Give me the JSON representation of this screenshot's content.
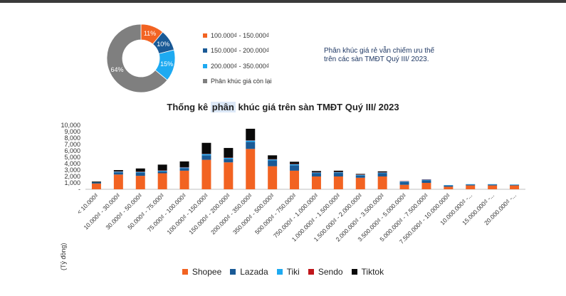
{
  "colors": {
    "shopee": "#f26322",
    "lazada": "#1a5a96",
    "tiki": "#1eaaf1",
    "sendo": "#c0161b",
    "tiktok": "#0a0a0a",
    "other": "#7f7f7f",
    "note_text": "#1f3864"
  },
  "note": {
    "line1": "Phân khúc giá rẻ vẫn chiếm ưu thế",
    "line2": "trên các sàn TMĐT Quý III/ 2023."
  },
  "chart_data": [
    {
      "type": "pie",
      "donut": true,
      "slices": [
        {
          "name": "100.000₫ - 150.000₫",
          "value": 11,
          "label": "11%",
          "color": "#f26322"
        },
        {
          "name": "150.000₫ - 200.000₫",
          "value": 10,
          "label": "10%",
          "color": "#1a5a96"
        },
        {
          "name": "200.000₫ - 350.000₫",
          "value": 15,
          "label": "15%",
          "color": "#1eaaf1"
        },
        {
          "name": "Phân khúc giá còn lại",
          "value": 64,
          "label": "64%",
          "color": "#7f7f7f"
        }
      ],
      "legend_position": "right"
    },
    {
      "type": "bar",
      "stacked": true,
      "title_parts": [
        "Thống kê ",
        "phân",
        " khúc giá trên sàn TMĐT Quý III/ 2023"
      ],
      "ylabel": "(Tỷ đồng)",
      "ylim": [
        0,
        10000
      ],
      "yticks": [
        "10,000",
        "9,000",
        "8,000",
        "7,000",
        "6,000",
        "5,000",
        "4,000",
        "3,000",
        "2,000",
        "1,000",
        "-"
      ],
      "categories": [
        "< 10.000₫",
        "10.000₫ - 30.000₫",
        "30.000₫ - 50.000₫",
        "50.000₫ - 75.000₫",
        "75.000₫ - 100.000₫",
        "100.000₫ - 150.000₫",
        "150.000₫ - 200.000₫",
        "200.000₫ - 350.000₫",
        "350.000₫ - 500.000₫",
        "500.000₫ - 750.000₫",
        "750.000₫ - 1.000.000₫",
        "1.000.000₫ - 1.500.000₫",
        "1.500.000₫ - 2.000.000₫",
        "2.000.000₫ - 3.500.000₫",
        "3.500.000₫ - 5.000.000₫",
        "5.000.000₫ - 7.500.000₫",
        "7.500.000₫ - 10.000.000₫",
        "10.000.000₫ -...",
        "15.000.000₫ -...",
        "20.000.000₫ -..."
      ],
      "series": [
        {
          "name": "Shopee",
          "color": "#f26322",
          "values": [
            900,
            2300,
            2100,
            2500,
            2900,
            4600,
            4200,
            6300,
            3600,
            2900,
            2000,
            2000,
            1800,
            2000,
            700,
            1000,
            400,
            600,
            600,
            600
          ]
        },
        {
          "name": "Lazada",
          "color": "#1a5a96",
          "values": [
            100,
            350,
            500,
            300,
            400,
            700,
            550,
            1100,
            900,
            850,
            500,
            550,
            350,
            500,
            450,
            400,
            200,
            150,
            150,
            100
          ]
        },
        {
          "name": "Tiki",
          "color": "#1eaaf1",
          "values": [
            50,
            100,
            100,
            100,
            100,
            200,
            150,
            200,
            150,
            150,
            100,
            100,
            100,
            100,
            100,
            100,
            50,
            50,
            50,
            50
          ]
        },
        {
          "name": "Sendo",
          "color": "#c0161b",
          "values": [
            0,
            50,
            50,
            50,
            50,
            50,
            50,
            50,
            50,
            50,
            50,
            50,
            50,
            50,
            50,
            50,
            0,
            0,
            0,
            0
          ]
        },
        {
          "name": "Tiktok",
          "color": "#0a0a0a",
          "values": [
            150,
            200,
            500,
            900,
            900,
            1700,
            1500,
            1800,
            600,
            350,
            200,
            200,
            100,
            150,
            0,
            0,
            0,
            0,
            0,
            0
          ]
        }
      ],
      "legend_position": "bottom"
    }
  ]
}
